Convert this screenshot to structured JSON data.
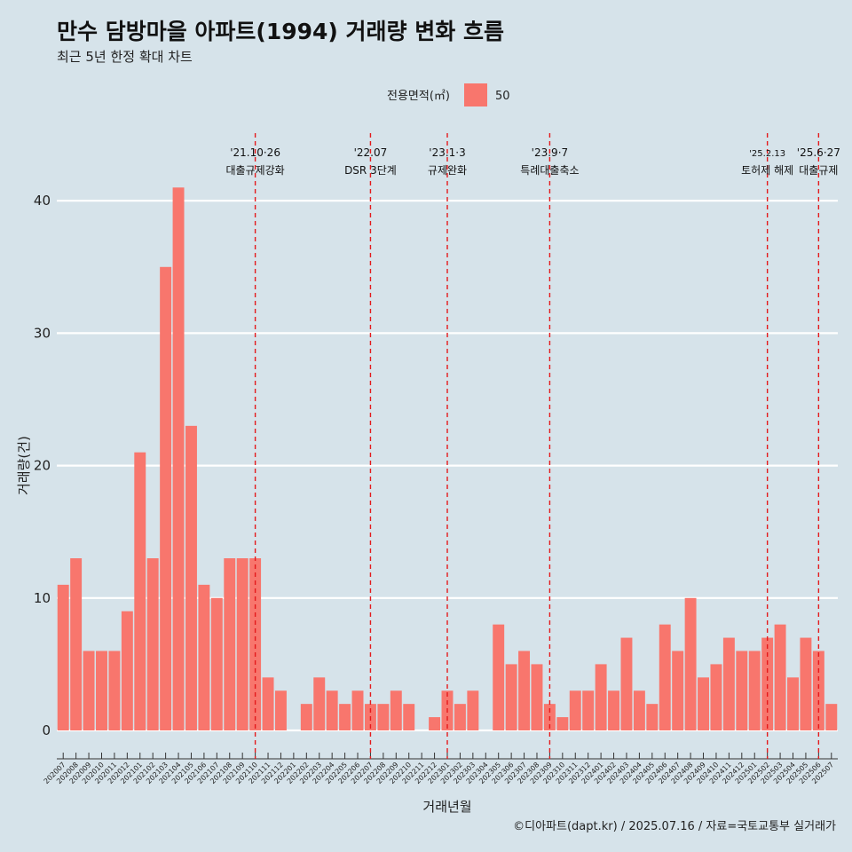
{
  "header": {
    "title": "만수 담방마을 아파트(1994) 거래량 변화 흐름",
    "subtitle": "최근 5년 한정 확대 차트"
  },
  "legend": {
    "title": "전용면적(㎡)",
    "items": [
      {
        "label": "50",
        "color": "#f8766d"
      }
    ]
  },
  "caption": "©디아파트(dapt.kr) / 2025.07.16 / 자료=국토교통부 실거래가",
  "chart_data": {
    "type": "bar",
    "xlabel": "거래년월",
    "ylabel": "거래량(건)",
    "ylim": [
      0,
      41
    ],
    "yticks": [
      0,
      10,
      20,
      30,
      40
    ],
    "grid": true,
    "legend_position": "top",
    "bar_color": "#f8766d",
    "categories": [
      "202007",
      "202008",
      "202009",
      "202010",
      "202011",
      "202012",
      "202101",
      "202102",
      "202103",
      "202104",
      "202105",
      "202106",
      "202107",
      "202108",
      "202109",
      "202110",
      "202111",
      "202112",
      "202201",
      "202202",
      "202203",
      "202204",
      "202205",
      "202206",
      "202207",
      "202208",
      "202209",
      "202210",
      "202211",
      "202212",
      "202301",
      "202302",
      "202303",
      "202304",
      "202305",
      "202306",
      "202307",
      "202308",
      "202309",
      "202310",
      "202311",
      "202312",
      "202401",
      "202402",
      "202403",
      "202404",
      "202405",
      "202406",
      "202407",
      "202408",
      "202409",
      "202410",
      "202411",
      "202412",
      "202501",
      "202502",
      "202503",
      "202504",
      "202505",
      "202506",
      "202507"
    ],
    "values": [
      11,
      13,
      6,
      6,
      6,
      9,
      21,
      13,
      35,
      41,
      23,
      11,
      10,
      13,
      13,
      13,
      4,
      3,
      0,
      2,
      4,
      3,
      2,
      3,
      2,
      2,
      3,
      2,
      0,
      1,
      3,
      2,
      3,
      0,
      8,
      5,
      6,
      5,
      2,
      1,
      3,
      3,
      5,
      3,
      7,
      3,
      2,
      8,
      6,
      10,
      4,
      5,
      7,
      6,
      6,
      7,
      8,
      4,
      7,
      6,
      2
    ],
    "series": [
      {
        "name": "50",
        "values": [
          11,
          13,
          6,
          6,
          6,
          9,
          21,
          13,
          35,
          41,
          23,
          11,
          10,
          13,
          13,
          13,
          4,
          3,
          0,
          2,
          4,
          3,
          2,
          3,
          2,
          2,
          3,
          2,
          0,
          1,
          3,
          2,
          3,
          0,
          8,
          5,
          6,
          5,
          2,
          1,
          3,
          3,
          5,
          3,
          7,
          3,
          2,
          8,
          6,
          10,
          4,
          5,
          7,
          6,
          6,
          7,
          8,
          4,
          7,
          6,
          2
        ]
      }
    ],
    "annotations": [
      {
        "x": "202110",
        "date": "'21.10·26",
        "label": "대출규제강화",
        "color": "#e41a1c"
      },
      {
        "x": "202207",
        "date": "'22.07",
        "label": "DSR 3단계",
        "color": "#e41a1c"
      },
      {
        "x": "202301",
        "date": "'23.1·3",
        "label": "규제완화",
        "color": "#e41a1c"
      },
      {
        "x": "202309",
        "date": "'23.9·7",
        "label": "특례대출축소",
        "color": "#e41a1c"
      },
      {
        "x": "202502",
        "date": "'25.2.13",
        "label": "토허제 해제",
        "color": "#e41a1c",
        "small": true
      },
      {
        "x": "202506",
        "date": "'25.6·27",
        "label": "대출규제",
        "color": "#e41a1c"
      }
    ]
  }
}
